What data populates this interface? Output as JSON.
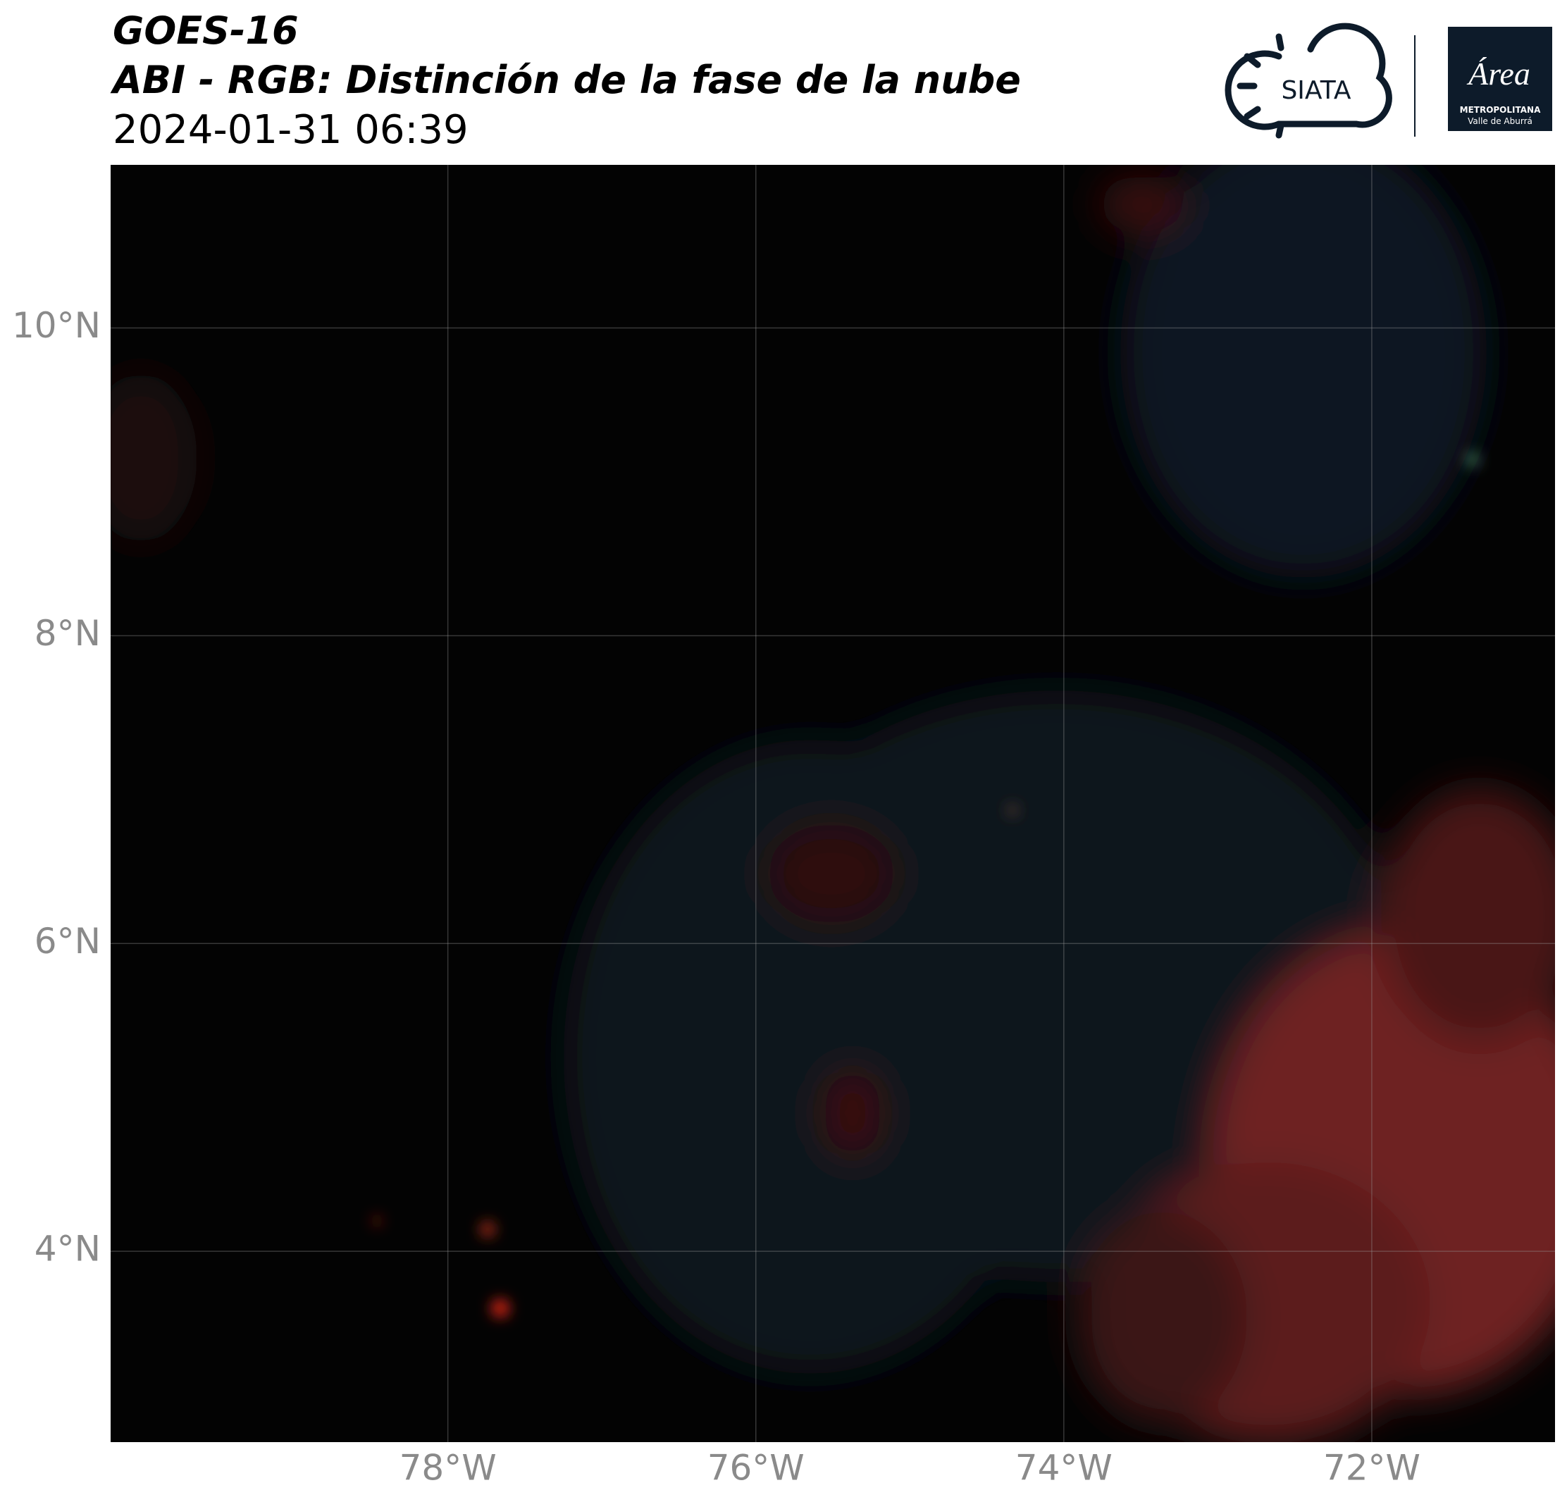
{
  "header": {
    "title": "GOES-16",
    "subtitle": "ABI - RGB: Distinción de la fase de la nube",
    "datetime": "2024-01-31 06:39"
  },
  "logos": {
    "siata": "SIATA",
    "area": "Área",
    "area_line1": "METROPOLITANA",
    "area_line2": "Valle de Aburrá"
  },
  "map": {
    "xlim": [
      -80.19,
      -70.81
    ],
    "ylim": [
      2.76,
      11.06
    ],
    "xticks": [
      {
        "value": -78,
        "label": "78°W"
      },
      {
        "value": -76,
        "label": "76°W"
      },
      {
        "value": -74,
        "label": "74°W"
      },
      {
        "value": -72,
        "label": "72°W"
      }
    ],
    "yticks": [
      {
        "value": 10,
        "label": "10°N"
      },
      {
        "value": 8,
        "label": "8°N"
      },
      {
        "value": 6,
        "label": "6°N"
      },
      {
        "value": 4,
        "label": "4°N"
      }
    ],
    "grid": true
  }
}
